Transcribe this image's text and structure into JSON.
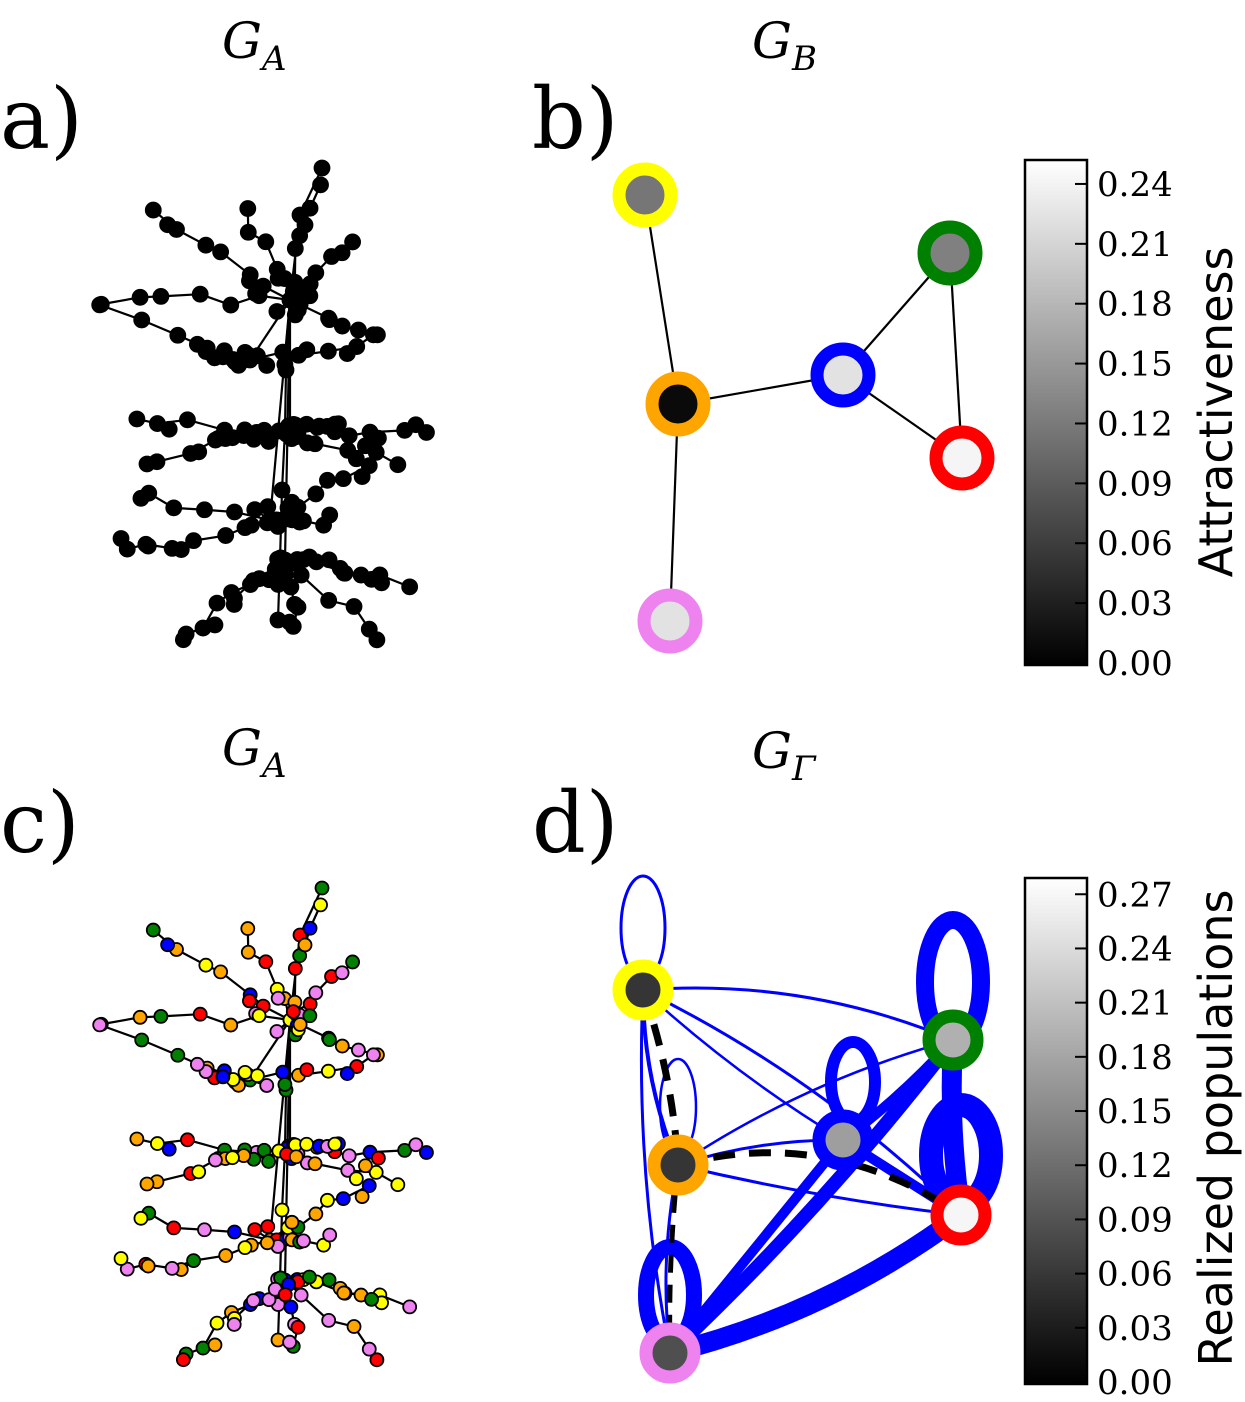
{
  "panels": {
    "a": {
      "label": "a)",
      "title_main": "G",
      "title_sub": "A"
    },
    "b": {
      "label": "b)",
      "title_main": "G",
      "title_sub": "B"
    },
    "c": {
      "label": "c)",
      "title_main": "G",
      "title_sub": "A"
    },
    "d": {
      "label": "d)",
      "title_main": "G",
      "title_sub": "Γ"
    }
  },
  "colorbar_b": {
    "label": "Attractiveness",
    "ticks": [
      "0.00",
      "0.03",
      "0.06",
      "0.09",
      "0.12",
      "0.15",
      "0.18",
      "0.21",
      "0.24"
    ]
  },
  "colorbar_d": {
    "label": "Realized populations",
    "ticks": [
      "0.00",
      "0.03",
      "0.06",
      "0.09",
      "0.12",
      "0.15",
      "0.18",
      "0.21",
      "0.24",
      "0.27"
    ]
  },
  "community_nodes_b": [
    {
      "id": "yellow",
      "ring": "#ffff00",
      "value": 0.12
    },
    {
      "id": "orange",
      "ring": "#ffa500",
      "value": 0.01
    },
    {
      "id": "pink",
      "ring": "#ee82ee",
      "value": 0.23
    },
    {
      "id": "blue",
      "ring": "#0000ff",
      "value": 0.23
    },
    {
      "id": "green",
      "ring": "#008000",
      "value": 0.13
    },
    {
      "id": "red",
      "ring": "#ff0000",
      "value": 0.25
    }
  ],
  "community_edges_b": [
    [
      "yellow",
      "orange"
    ],
    [
      "orange",
      "pink"
    ],
    [
      "orange",
      "blue"
    ],
    [
      "blue",
      "green"
    ],
    [
      "blue",
      "red"
    ],
    [
      "green",
      "red"
    ]
  ],
  "community_nodes_d": [
    {
      "id": "yellow",
      "ring": "#ffff00",
      "value": 0.06
    },
    {
      "id": "orange",
      "ring": "#ffa500",
      "value": 0.06
    },
    {
      "id": "pink",
      "ring": "#ee82ee",
      "value": 0.09
    },
    {
      "id": "blue",
      "ring": "#0000ff",
      "value": 0.18
    },
    {
      "id": "green",
      "ring": "#008000",
      "value": 0.2
    },
    {
      "id": "red",
      "ring": "#ff0000",
      "value": 0.28
    }
  ],
  "colors": {
    "flow_edge": "#0000ff",
    "dashed_edge": "#000000",
    "node_palette": [
      "#ff0000",
      "#008000",
      "#0000ff",
      "#ffa500",
      "#ffff00",
      "#ee82ee"
    ]
  }
}
